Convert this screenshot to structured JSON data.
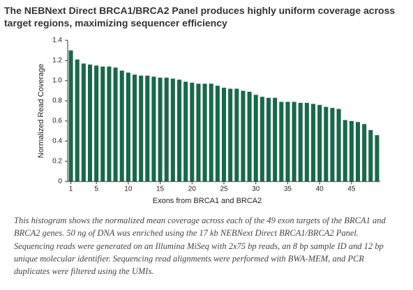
{
  "chart_data": {
    "type": "bar",
    "title": "The NEBNext Direct BRCA1/BRCA2 Panel produces highly uniform coverage across target regions, maximizing sequencer efficiency",
    "caption": "This histogram shows the normalized mean coverage across each of the 49 exon targets of the BRCA1 and BRCA2 genes. 50 ng of DNA was enriched using the 17 kb NEBNext Direct BRCA1/BRCA2 Panel. Sequencing reads were generated on an Illumina MiSeq with 2x75 bp reads, an 8 bp sample ID and 12 bp unique molecular identifier. Sequencing read alignments were performed with BWA-MEM, and PCR duplicates were filtered using the UMIs.",
    "x_label": "Exons from BRCA1 and BRCA2",
    "y_label": "Normalized Read Coverage",
    "categories": [
      "1",
      null,
      null,
      null,
      "5",
      null,
      null,
      null,
      null,
      "10",
      null,
      null,
      null,
      null,
      "15",
      null,
      null,
      null,
      null,
      "20",
      null,
      null,
      null,
      null,
      "25",
      null,
      null,
      null,
      null,
      "30",
      null,
      null,
      null,
      null,
      "35",
      null,
      null,
      null,
      null,
      "40",
      null,
      null,
      null,
      null,
      "45",
      null,
      null,
      null,
      null
    ],
    "values": [
      1.3,
      1.21,
      1.17,
      1.16,
      1.15,
      1.14,
      1.14,
      1.13,
      1.1,
      1.08,
      1.06,
      1.05,
      1.05,
      1.04,
      1.03,
      1.03,
      1.02,
      1.01,
      0.99,
      0.98,
      0.97,
      0.97,
      0.97,
      0.95,
      0.93,
      0.92,
      0.92,
      0.9,
      0.89,
      0.86,
      0.84,
      0.83,
      0.83,
      0.79,
      0.79,
      0.79,
      0.78,
      0.78,
      0.77,
      0.76,
      0.74,
      0.73,
      0.72,
      0.61,
      0.6,
      0.59,
      0.57,
      0.51,
      0.46
    ],
    "color": "#17694b",
    "ylim": [
      0,
      1.4
    ],
    "yticks": [
      0,
      0.2,
      0.4,
      0.6,
      0.8,
      {
        "value": 1.0,
        "label": "1.0"
      },
      1.2,
      1.4
    ]
  }
}
